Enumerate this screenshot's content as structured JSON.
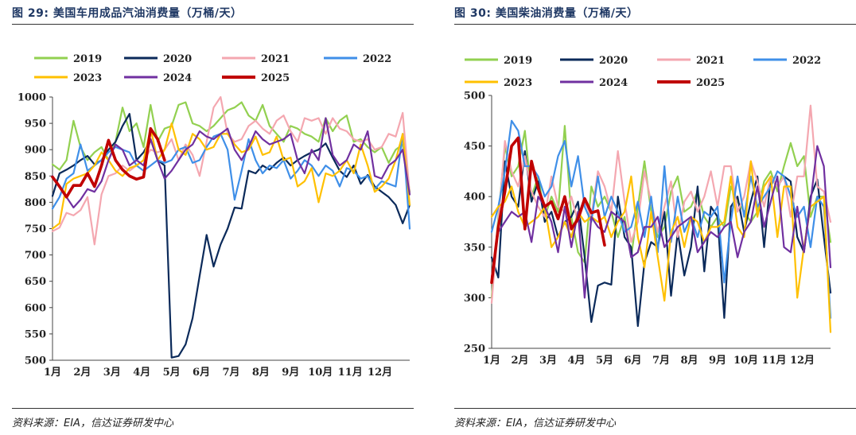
{
  "colors": {
    "2019": "#92d050",
    "2020": "#0b2a5a",
    "2021": "#f4a7b0",
    "2022": "#3f8fe8",
    "2023": "#ffc000",
    "2024": "#7030a0",
    "2025": "#c00000",
    "title": "#1f3864"
  },
  "charts": [
    {
      "title": "图 29:  美国车用成品汽油消费量（万桶/天）",
      "source": "资料来源：EIA，信达证券研发中心",
      "chart_data": {
        "type": "line",
        "unit": "万桶/天",
        "ylim": [
          500,
          1000
        ],
        "yticks": [
          "1000",
          "950",
          "900",
          "850",
          "800",
          "750",
          "700",
          "650",
          "600",
          "550",
          "500"
        ],
        "ytick_values": [
          1000,
          950,
          900,
          850,
          800,
          750,
          700,
          650,
          600,
          550,
          500
        ],
        "xlabels": [
          "1月",
          "2月",
          "3月",
          "4月",
          "5月",
          "6月",
          "7月",
          "8月",
          "9月",
          "10月",
          "11月",
          "12月"
        ],
        "legend_order": [
          "2019",
          "2020",
          "2021",
          "2022",
          "2023",
          "2024",
          "2025"
        ],
        "x_max": 52,
        "series": [
          {
            "name": "2019",
            "values": [
              872,
              862,
              880,
              955,
              905,
              880,
              895,
              905,
              880,
              915,
              980,
              935,
              950,
              905,
              985,
              915,
              940,
              945,
              985,
              990,
              950,
              945,
              935,
              945,
              960,
              975,
              980,
              990,
              965,
              955,
              985,
              945,
              930,
              915,
              945,
              940,
              930,
              925,
              915,
              960,
              935,
              955,
              965,
              915,
              920,
              905,
              895,
              905,
              875,
              900,
              910,
              820
            ]
          },
          {
            "name": "2020",
            "values": [
              812,
              855,
              862,
              870,
              880,
              888,
              872,
              880,
              900,
              915,
              945,
              968,
              880,
              895,
              920,
              880,
              870,
              505,
              508,
              530,
              580,
              660,
              738,
              678,
              720,
              750,
              790,
              788,
              860,
              855,
              870,
              862,
              875,
              885,
              870,
              880,
              888,
              895,
              900,
              912,
              885,
              860,
              848,
              870,
              835,
              852,
              830,
              820,
              810,
              795,
              760,
              795
            ]
          },
          {
            "name": "2021",
            "values": [
              745,
              752,
              780,
              775,
              785,
              810,
              720,
              815,
              850,
              855,
              870,
              860,
              870,
              880,
              900,
              895,
              900,
              920,
              880,
              910,
              890,
              850,
              915,
              980,
              1000,
              930,
              915,
              920,
              945,
              955,
              940,
              930,
              955,
              965,
              935,
              915,
              960,
              955,
              960,
              930,
              960,
              940,
              935,
              920,
              915,
              920,
              900,
              905,
              930,
              925,
              970,
              815
            ]
          },
          {
            "name": "2022",
            "values": [
              788,
              810,
              845,
              855,
              910,
              860,
              870,
              880,
              895,
              905,
              900,
              895,
              870,
              860,
              870,
              880,
              875,
              880,
              900,
              905,
              875,
              880,
              905,
              925,
              930,
              900,
              805,
              860,
              920,
              880,
              855,
              870,
              865,
              880,
              845,
              860,
              880,
              870,
              850,
              870,
              860,
              830,
              865,
              860,
              845,
              850,
              825,
              840,
              835,
              830,
              930,
              750
            ]
          },
          {
            "name": "2023",
            "values": [
              750,
              760,
              835,
              845,
              850,
              855,
              870,
              895,
              880,
              860,
              850,
              865,
              870,
              880,
              940,
              880,
              900,
              950,
              900,
              890,
              930,
              920,
              900,
              905,
              930,
              930,
              910,
              895,
              900,
              925,
              890,
              895,
              925,
              880,
              885,
              830,
              840,
              865,
              800,
              855,
              850,
              860,
              880,
              855,
              910,
              870,
              820,
              830,
              845,
              880,
              930,
              795
            ]
          },
          {
            "name": "2024",
            "values": [
              850,
              830,
              810,
              790,
              805,
              825,
              820,
              840,
              880,
              910,
              900,
              870,
              880,
              870,
              920,
              880,
              845,
              860,
              880,
              900,
              910,
              935,
              925,
              920,
              930,
              940,
              900,
              880,
              905,
              935,
              920,
              910,
              915,
              920,
              930,
              880,
              855,
              900,
              880,
              960,
              890,
              870,
              880,
              910,
              900,
              935,
              850,
              845,
              870,
              880,
              900,
              815
            ]
          },
          {
            "name": "2025",
            "values": [
              848,
              830,
              810,
              832,
              832,
              855,
              830,
              870,
              918,
              880,
              862,
              850,
              844,
              848,
              940,
              920,
              880
            ]
          }
        ]
      }
    },
    {
      "title": "图 30:  美国柴油消费量（万桶/天）",
      "source": "资料来源：EIA，信达证券研发中心",
      "chart_data": {
        "type": "line",
        "unit": "万桶/天",
        "ylim": [
          250,
          500
        ],
        "yticks": [
          "500",
          "450",
          "400",
          "350",
          "300",
          "250"
        ],
        "ytick_values": [
          500,
          450,
          400,
          350,
          300,
          250
        ],
        "xlabels": [
          "1月",
          "2月",
          "3月",
          "4月",
          "5月",
          "6月",
          "7月",
          "8月",
          "9月",
          "10月",
          "11月",
          "12月"
        ],
        "legend_order": [
          "2019",
          "2020",
          "2021",
          "2022",
          "2023",
          "2024",
          "2025"
        ],
        "x_max": 52,
        "series": [
          {
            "name": "2019",
            "values": [
              300,
              380,
              450,
              420,
              430,
              465,
              400,
              420,
              380,
              400,
              385,
              470,
              380,
              345,
              335,
              410,
              390,
              400,
              385,
              360,
              380,
              340,
              390,
              435,
              385,
              360,
              370,
              405,
              420,
              385,
              390,
              405,
              380,
              370,
              380,
              370,
              410,
              395,
              385,
              375,
              385,
              415,
              425,
              405,
              430,
              453,
              430,
              440,
              380,
              400,
              400,
              355
            ]
          },
          {
            "name": "2020",
            "values": [
              340,
              320,
              435,
              400,
              390,
              445,
              395,
              415,
              375,
              385,
              360,
              375,
              380,
              395,
              340,
              276,
              312,
              315,
              313,
              400,
              360,
              350,
              272,
              335,
              355,
              350,
              385,
              302,
              365,
              322,
              350,
              410,
              326,
              390,
              380,
              280,
              390,
              400,
              365,
              395,
              420,
              350,
              420,
              410,
              420,
              415,
              360,
              345,
              400,
              417,
              360,
              305
            ]
          },
          {
            "name": "2021",
            "values": [
              295,
              375,
              455,
              425,
              410,
              440,
              405,
              390,
              380,
              420,
              390,
              385,
              400,
              375,
              395,
              380,
              425,
              410,
              385,
              445,
              395,
              355,
              375,
              425,
              395,
              365,
              390,
              415,
              360,
              395,
              405,
              385,
              400,
              425,
              390,
              430,
              430,
              385,
              400,
              435,
              415,
              390,
              420,
              410,
              420,
              380,
              420,
              420,
              490,
              410,
              405,
              375
            ]
          },
          {
            "name": "2022",
            "values": [
              365,
              390,
              425,
              475,
              465,
              430,
              430,
              420,
              400,
              410,
              440,
              455,
              410,
              440,
              390,
              375,
              420,
              380,
              400,
              385,
              365,
              370,
              395,
              360,
              400,
              345,
              430,
              355,
              400,
              365,
              380,
              360,
              385,
              380,
              390,
              315,
              375,
              420,
              380,
              420,
              390,
              400,
              410,
              425,
              420,
              400,
              380,
              390,
              350,
              400,
              390,
              280
            ]
          },
          {
            "name": "2023",
            "values": [
              380,
              390,
              395,
              410,
              385,
              370,
              375,
              380,
              390,
              350,
              360,
              375,
              360,
              385,
              375,
              380,
              375,
              380,
              360,
              375,
              385,
              420,
              360,
              330,
              385,
              340,
              297,
              365,
              380,
              350,
              380,
              375,
              355,
              370,
              370,
              375,
              420,
              370,
              360,
              435,
              380,
              410,
              420,
              360,
              410,
              410,
              300,
              350,
              390,
              395,
              400,
              266
            ]
          },
          {
            "name": "2024",
            "values": [
              320,
              365,
              375,
              385,
              380,
              385,
              355,
              400,
              390,
              375,
              345,
              390,
              350,
              385,
              300,
              380,
              370,
              365,
              385,
              380,
              375,
              340,
              345,
              370,
              370,
              380,
              350,
              360,
              370,
              375,
              380,
              345,
              355,
              365,
              360,
              370,
              375,
              340,
              365,
              375,
              410,
              370,
              395,
              420,
              350,
              345,
              390,
              345,
              395,
              450,
              430,
              330
            ]
          },
          {
            "name": "2025",
            "values": [
              315,
              370,
              405,
              450,
              458,
              368,
              435,
              408,
              390,
              395,
              378,
              400,
              368,
              378,
              398,
              384,
              386,
              352
            ]
          }
        ]
      }
    }
  ]
}
